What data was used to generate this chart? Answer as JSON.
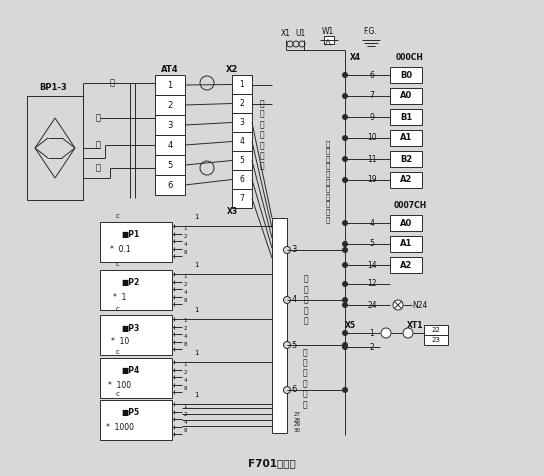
{
  "bg_color": "#d8d8d8",
  "line_color": "#2a2a2a",
  "font_color": "#111111",
  "title": "F701接线图",
  "at4_pins": [
    "1",
    "2",
    "3",
    "4",
    "5",
    "6"
  ],
  "sensor_port_pins": [
    "1",
    "2",
    "3",
    "4",
    "5",
    "6",
    "7"
  ],
  "x4_pins": [
    "6",
    "7",
    "9",
    "10",
    "11",
    "19"
  ],
  "x4_labels": [
    "B0",
    "A0",
    "B1",
    "A1",
    "B2",
    "A2"
  ],
  "ch7_pins": [
    "4",
    "5",
    "14"
  ],
  "ch7_labels": [
    "A0",
    "A1",
    "A2"
  ],
  "mp_names": [
    "P1",
    "P2",
    "P3",
    "P4",
    "P5"
  ],
  "mp_mults": [
    "0.1",
    "1",
    "10",
    "100",
    "1000"
  ],
  "wire_labels": [
    "红",
    "黑",
    "绿",
    "白"
  ],
  "ctrl_label": "控制信号输入、输出接口",
  "sensor_label": "称重传感器接口",
  "set_label": "设定点接口",
  "mass_label": "质量输出接口"
}
